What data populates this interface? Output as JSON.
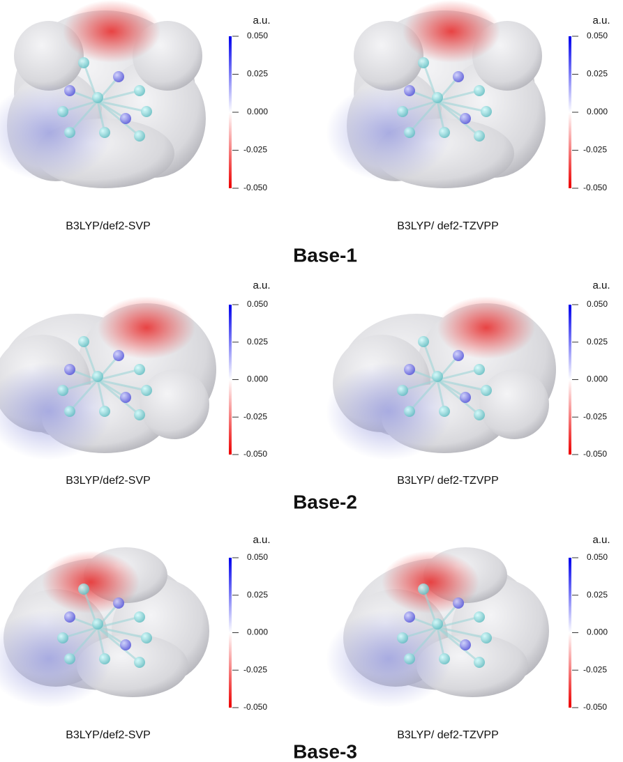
{
  "rows": [
    {
      "title": "Base-1",
      "panels": [
        {
          "method": "B3LYP/def2-SVP",
          "colorbar": {
            "label": "a.u.",
            "ticks": [
              {
                "value": 0.05,
                "label": "0.050"
              },
              {
                "value": 0.025,
                "label": "0.025"
              },
              {
                "value": 0,
                "label": "0.000"
              },
              {
                "value": -0.025,
                "label": "-0.025"
              },
              {
                "value": -0.05,
                "label": "-0.050"
              }
            ]
          }
        },
        {
          "method": "B3LYP/ def2-TZVPP",
          "colorbar": {
            "label": "a.u.",
            "ticks": [
              {
                "value": 0.05,
                "label": "0.050"
              },
              {
                "value": 0.025,
                "label": "0.025"
              },
              {
                "value": 0,
                "label": "0.000"
              },
              {
                "value": -0.025,
                "label": "-0.025"
              },
              {
                "value": -0.05,
                "label": "-0.050"
              }
            ]
          }
        }
      ]
    },
    {
      "title": "Base-2",
      "panels": [
        {
          "method": "B3LYP/def2-SVP",
          "colorbar": {
            "label": "a.u.",
            "ticks": [
              {
                "value": 0.05,
                "label": "0.050"
              },
              {
                "value": 0.025,
                "label": "0.025"
              },
              {
                "value": 0,
                "label": "0.000"
              },
              {
                "value": -0.025,
                "label": "-0.025"
              },
              {
                "value": -0.05,
                "label": "-0.050"
              }
            ]
          }
        },
        {
          "method": "B3LYP/ def2-TZVPP",
          "colorbar": {
            "label": "a.u.",
            "ticks": [
              {
                "value": 0.05,
                "label": "0.050"
              },
              {
                "value": 0.025,
                "label": "0.025"
              },
              {
                "value": 0,
                "label": "0.000"
              },
              {
                "value": -0.025,
                "label": "-0.025"
              },
              {
                "value": -0.05,
                "label": "-0.050"
              }
            ]
          }
        }
      ]
    },
    {
      "title": "Base-3",
      "panels": [
        {
          "method": "B3LYP/def2-SVP",
          "colorbar": {
            "label": "a.u.",
            "ticks": [
              {
                "value": 0.05,
                "label": "0.050"
              },
              {
                "value": 0.025,
                "label": "0.025"
              },
              {
                "value": 0,
                "label": "0.000"
              },
              {
                "value": -0.025,
                "label": "-0.025"
              },
              {
                "value": -0.05,
                "label": "-0.050"
              }
            ]
          }
        },
        {
          "method": "B3LYP/ def2-TZVPP",
          "colorbar": {
            "label": "a.u.",
            "ticks": [
              {
                "value": 0.05,
                "label": "0.050"
              },
              {
                "value": 0.025,
                "label": "0.025"
              },
              {
                "value": 0,
                "label": "0.000"
              },
              {
                "value": -0.025,
                "label": "-0.025"
              },
              {
                "value": -0.05,
                "label": "-0.050"
              }
            ]
          }
        }
      ]
    }
  ]
}
